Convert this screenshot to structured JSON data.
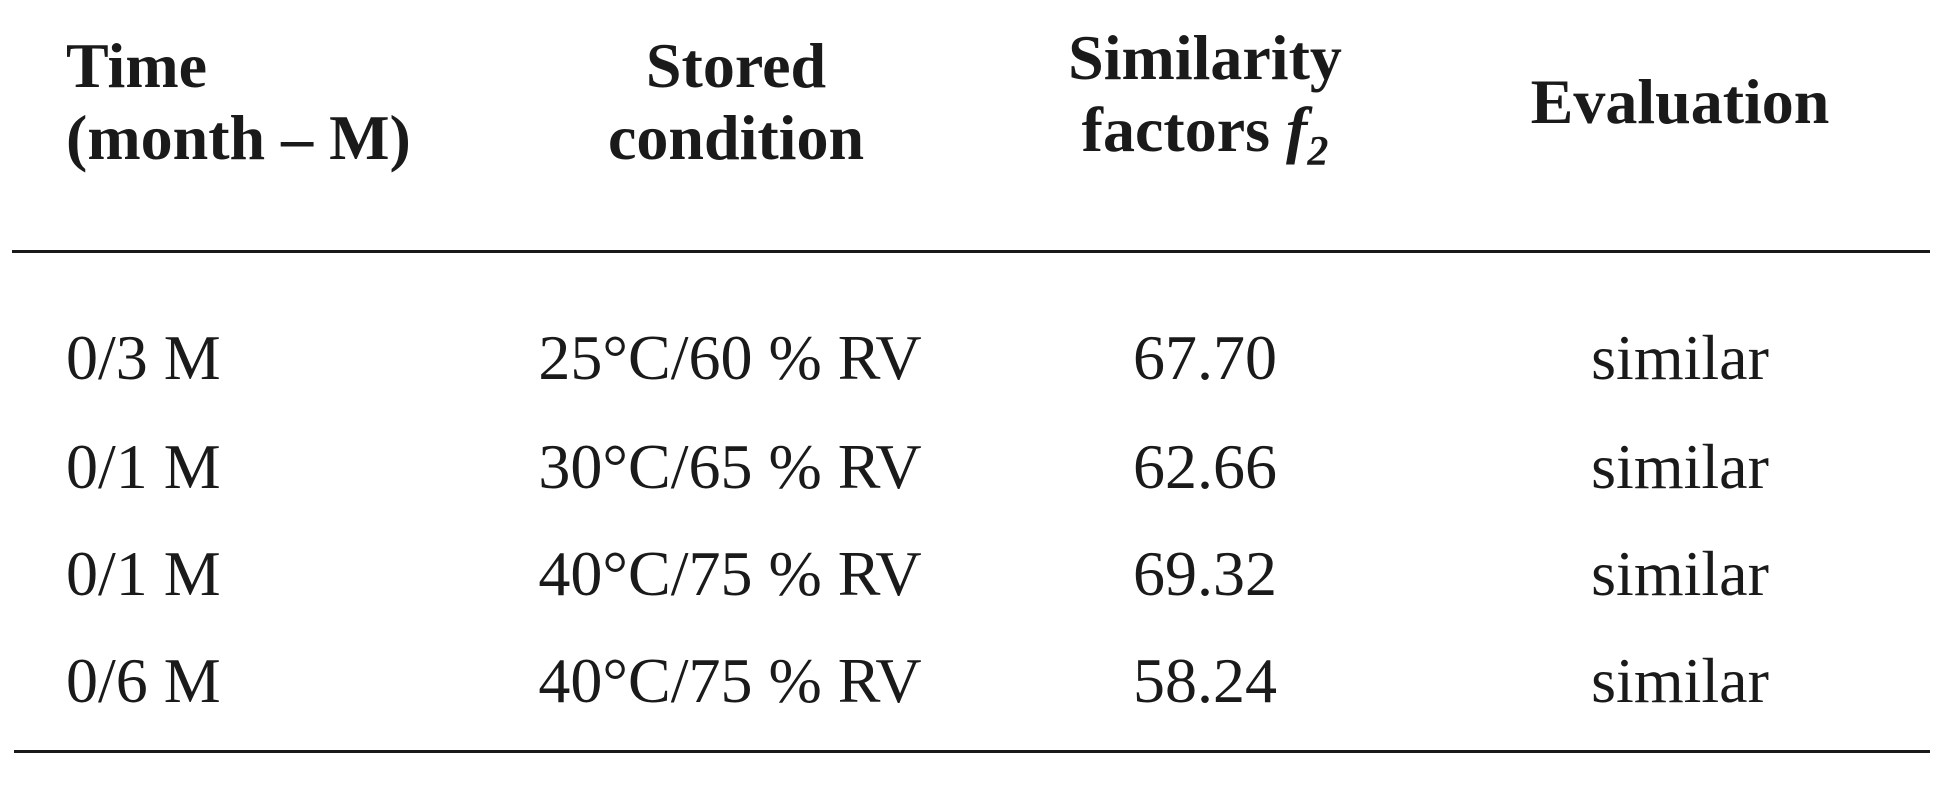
{
  "table": {
    "headers": {
      "time": [
        "Time",
        "(month – M)"
      ],
      "condition": [
        "Stored",
        "condition"
      ],
      "similarity": {
        "line1": "Similarity",
        "line2_prefix": "factors ",
        "symbol": "f",
        "subscript": "2"
      },
      "evaluation": "Evaluation"
    },
    "rows": [
      {
        "time": "0/3 M",
        "condition": "25°C/60 % RV",
        "f2": "67.70",
        "evaluation": "similar"
      },
      {
        "time": "0/1 M",
        "condition": "30°C/65 % RV",
        "f2": "62.66",
        "evaluation": "similar"
      },
      {
        "time": "0/1 M",
        "condition": "40°C/75 % RV",
        "f2": "69.32",
        "evaluation": "similar"
      },
      {
        "time": "0/6 M",
        "condition": "40°C/75 % RV",
        "f2": "58.24",
        "evaluation": "similar"
      }
    ]
  }
}
